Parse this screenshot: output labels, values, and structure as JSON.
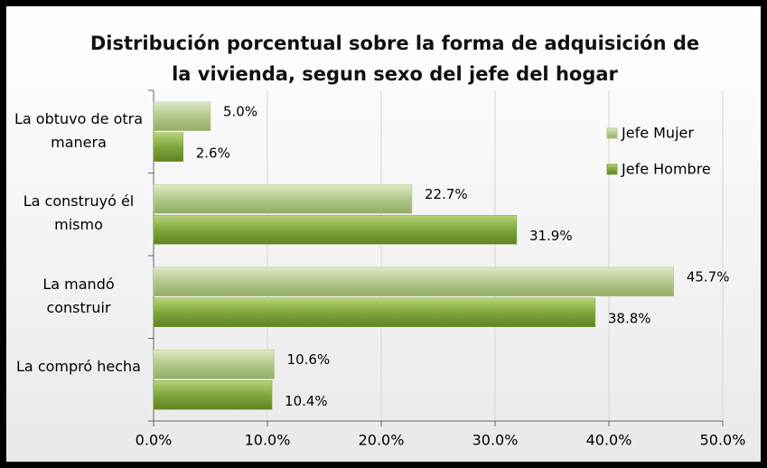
{
  "chart_data": {
    "type": "barh",
    "title": "Distribución porcentual sobre la forma de adquisición de la vivienda, segun sexo del jefe del hogar",
    "categories": [
      "La obtuvo de otra manera",
      "La construyó él mismo",
      "La mandó construir",
      "La compró hecha"
    ],
    "series": [
      {
        "name": "Jefe Mujer",
        "color": "#b3c88a",
        "values": [
          5.0,
          22.7,
          45.7,
          10.6
        ],
        "value_labels": [
          "5.0%",
          "22.7%",
          "45.7%",
          "10.6%"
        ]
      },
      {
        "name": "Jefe Hombre",
        "color": "#7fa63c",
        "values": [
          2.6,
          31.9,
          38.8,
          10.4
        ],
        "value_labels": [
          "2.6%",
          "31.9%",
          "38.8%",
          "10.4%"
        ]
      }
    ],
    "xlim": [
      0,
      50
    ],
    "xticks": [
      {
        "value": 0,
        "label": "0.0%"
      },
      {
        "value": 10,
        "label": "10.0%"
      },
      {
        "value": 20,
        "label": "20.0%"
      },
      {
        "value": 30,
        "label": "30.0%"
      },
      {
        "value": 40,
        "label": "40.0%"
      },
      {
        "value": 50,
        "label": "50.0%"
      }
    ],
    "grid": true,
    "legend": "top-right"
  }
}
